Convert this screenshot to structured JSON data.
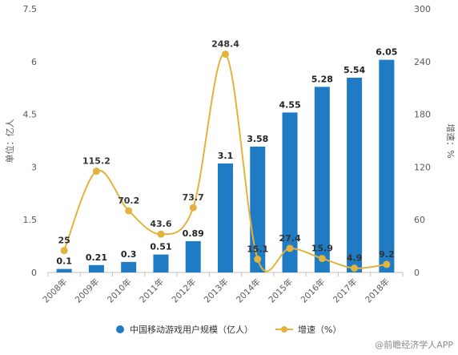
{
  "chart_data": {
    "type": "bar",
    "categories": [
      "2008年",
      "2009年",
      "2010年",
      "2011年",
      "2012年",
      "2013年",
      "2014年",
      "2015年",
      "2016年",
      "2017年",
      "2018年"
    ],
    "series": [
      {
        "name": "中国移动游戏用户规模（亿人）",
        "type": "bar",
        "axis": "left",
        "color": "#1f7bc4",
        "values": [
          0.1,
          0.21,
          0.3,
          0.51,
          0.89,
          3.1,
          3.58,
          4.55,
          5.28,
          5.54,
          6.05
        ]
      },
      {
        "name": "增速（%）",
        "type": "line",
        "axis": "right",
        "color": "#e2b33d",
        "values": [
          25,
          115.2,
          70.2,
          43.6,
          73.7,
          248.4,
          15.1,
          27.4,
          15.9,
          4.9,
          9.2
        ]
      }
    ],
    "ylabel": "单位：亿人",
    "y2label": "增速：%",
    "ylim": [
      0,
      7.5
    ],
    "y2lim": [
      0,
      300
    ],
    "yticks": [
      "0",
      "1.5",
      "3",
      "4.5",
      "6",
      "7.5"
    ],
    "y2ticks": [
      "0",
      "60",
      "120",
      "180",
      "240",
      "300"
    ],
    "legend_position": "bottom",
    "grid": false
  },
  "watermark": "@前瞻经济学人APP"
}
